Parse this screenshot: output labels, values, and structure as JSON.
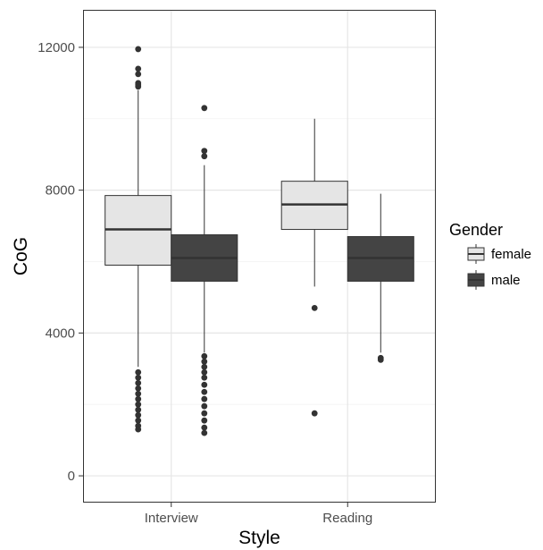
{
  "chart_data": {
    "type": "box",
    "xlabel": "Style",
    "ylabel": "CoG",
    "categories": [
      "Interview",
      "Reading"
    ],
    "yticks": [
      0,
      4000,
      8000,
      12000
    ],
    "ylim": [
      -750,
      13050
    ],
    "grid": true,
    "legend": {
      "title": "Gender",
      "position": "right"
    },
    "series": [
      {
        "name": "female",
        "color": "#e5e5e5",
        "boxes": [
          {
            "category": "Interview",
            "q1": 5900,
            "median": 6900,
            "q3": 7850,
            "whisker_low": 3050,
            "whisker_high": 10800,
            "outliers": [
              11950,
              11400,
              11250,
              11000,
              10950,
              10900,
              2900,
              2750,
              2600,
              2450,
              2300,
              2150,
              2000,
              1850,
              1700,
              1550,
              1400,
              1300
            ]
          },
          {
            "category": "Reading",
            "q1": 6900,
            "median": 7600,
            "q3": 8250,
            "whisker_low": 5300,
            "whisker_high": 10000,
            "outliers": [
              4700,
              1750
            ]
          }
        ]
      },
      {
        "name": "male",
        "color": "#444444",
        "boxes": [
          {
            "category": "Interview",
            "q1": 5450,
            "median": 6100,
            "q3": 6750,
            "whisker_low": 3450,
            "whisker_high": 8700,
            "outliers": [
              10300,
              9100,
              8950,
              3350,
              3200,
              3050,
              2900,
              2750,
              2550,
              2350,
              2150,
              1950,
              1750,
              1550,
              1350,
              1200
            ]
          },
          {
            "category": "Reading",
            "q1": 5450,
            "median": 6100,
            "q3": 6700,
            "whisker_low": 3450,
            "whisker_high": 7900,
            "outliers": [
              3300,
              3250
            ]
          }
        ]
      }
    ]
  }
}
